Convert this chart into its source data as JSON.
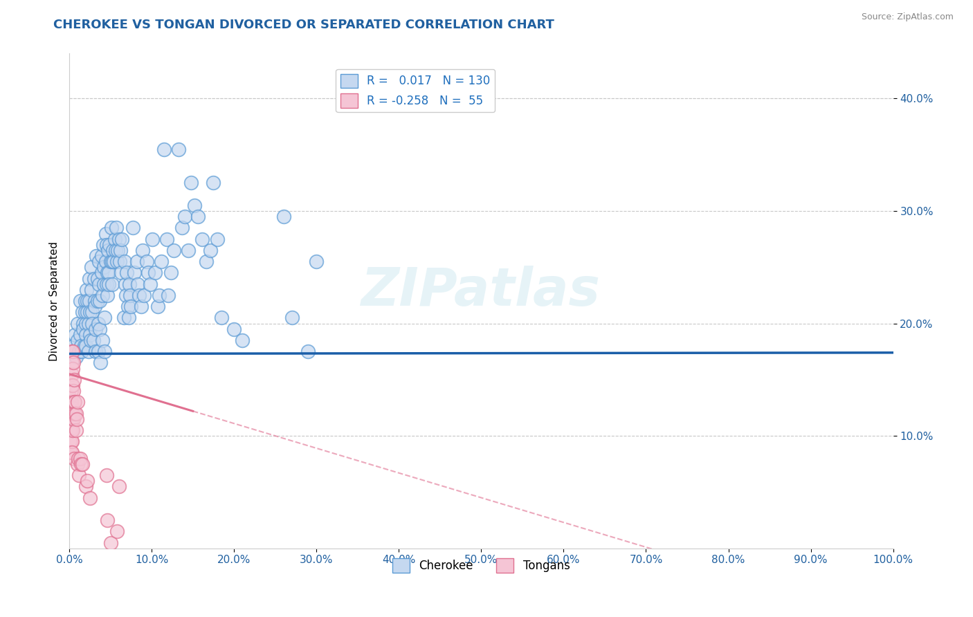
{
  "title": "CHEROKEE VS TONGAN DIVORCED OR SEPARATED CORRELATION CHART",
  "source_text": "Source: ZipAtlas.com",
  "ylabel": "Divorced or Separated",
  "xlabel": "",
  "xlim": [
    0.0,
    1.0
  ],
  "ylim": [
    0.0,
    0.44
  ],
  "xtick_labels": [
    "0.0%",
    "10.0%",
    "20.0%",
    "30.0%",
    "40.0%",
    "50.0%",
    "60.0%",
    "70.0%",
    "80.0%",
    "90.0%",
    "100.0%"
  ],
  "xtick_vals": [
    0.0,
    0.1,
    0.2,
    0.3,
    0.4,
    0.5,
    0.6,
    0.7,
    0.8,
    0.9,
    1.0
  ],
  "ytick_labels": [
    "10.0%",
    "20.0%",
    "30.0%",
    "40.0%"
  ],
  "ytick_vals": [
    0.1,
    0.2,
    0.3,
    0.4
  ],
  "grid_color": "#c8c8c8",
  "background_color": "#ffffff",
  "cherokee_color": "#c5d8f0",
  "cherokee_edge_color": "#5b9bd5",
  "tongan_color": "#f5c5d5",
  "tongan_edge_color": "#e07090",
  "cherokee_line_color": "#1a5ea8",
  "tongan_line_color": "#e07090",
  "cherokee_R": 0.017,
  "cherokee_N": 130,
  "tongan_R": -0.258,
  "tongan_N": 55,
  "watermark_text": "ZIPatlas",
  "legend_cherokee": "Cherokee",
  "legend_tongan": "Tongans",
  "title_color": "#2060a0",
  "cherokee_line_y_intercept": 0.173,
  "cherokee_line_slope": 0.001,
  "tongan_line_y_intercept": 0.155,
  "tongan_line_slope": -0.22,
  "cherokee_scatter": [
    [
      0.005,
      0.18
    ],
    [
      0.005,
      0.175
    ],
    [
      0.007,
      0.19
    ],
    [
      0.008,
      0.17
    ],
    [
      0.01,
      0.2
    ],
    [
      0.01,
      0.185
    ],
    [
      0.012,
      0.175
    ],
    [
      0.013,
      0.22
    ],
    [
      0.013,
      0.19
    ],
    [
      0.014,
      0.18
    ],
    [
      0.015,
      0.175
    ],
    [
      0.016,
      0.21
    ],
    [
      0.017,
      0.2
    ],
    [
      0.017,
      0.195
    ],
    [
      0.018,
      0.18
    ],
    [
      0.019,
      0.22
    ],
    [
      0.019,
      0.21
    ],
    [
      0.02,
      0.2
    ],
    [
      0.02,
      0.19
    ],
    [
      0.02,
      0.18
    ],
    [
      0.021,
      0.23
    ],
    [
      0.022,
      0.22
    ],
    [
      0.022,
      0.21
    ],
    [
      0.023,
      0.2
    ],
    [
      0.023,
      0.175
    ],
    [
      0.024,
      0.24
    ],
    [
      0.024,
      0.22
    ],
    [
      0.025,
      0.21
    ],
    [
      0.025,
      0.19
    ],
    [
      0.026,
      0.185
    ],
    [
      0.027,
      0.25
    ],
    [
      0.027,
      0.23
    ],
    [
      0.028,
      0.21
    ],
    [
      0.028,
      0.2
    ],
    [
      0.029,
      0.185
    ],
    [
      0.03,
      0.24
    ],
    [
      0.031,
      0.22
    ],
    [
      0.031,
      0.215
    ],
    [
      0.032,
      0.195
    ],
    [
      0.032,
      0.175
    ],
    [
      0.033,
      0.26
    ],
    [
      0.034,
      0.24
    ],
    [
      0.034,
      0.22
    ],
    [
      0.035,
      0.2
    ],
    [
      0.035,
      0.175
    ],
    [
      0.036,
      0.255
    ],
    [
      0.036,
      0.235
    ],
    [
      0.037,
      0.22
    ],
    [
      0.037,
      0.195
    ],
    [
      0.038,
      0.165
    ],
    [
      0.039,
      0.26
    ],
    [
      0.039,
      0.245
    ],
    [
      0.04,
      0.225
    ],
    [
      0.04,
      0.185
    ],
    [
      0.041,
      0.27
    ],
    [
      0.042,
      0.25
    ],
    [
      0.042,
      0.235
    ],
    [
      0.043,
      0.205
    ],
    [
      0.043,
      0.175
    ],
    [
      0.044,
      0.28
    ],
    [
      0.044,
      0.255
    ],
    [
      0.045,
      0.235
    ],
    [
      0.045,
      0.27
    ],
    [
      0.046,
      0.245
    ],
    [
      0.046,
      0.225
    ],
    [
      0.047,
      0.265
    ],
    [
      0.048,
      0.245
    ],
    [
      0.048,
      0.235
    ],
    [
      0.049,
      0.27
    ],
    [
      0.05,
      0.255
    ],
    [
      0.051,
      0.285
    ],
    [
      0.052,
      0.255
    ],
    [
      0.052,
      0.235
    ],
    [
      0.053,
      0.265
    ],
    [
      0.054,
      0.255
    ],
    [
      0.055,
      0.275
    ],
    [
      0.056,
      0.265
    ],
    [
      0.057,
      0.285
    ],
    [
      0.058,
      0.255
    ],
    [
      0.059,
      0.265
    ],
    [
      0.06,
      0.275
    ],
    [
      0.061,
      0.255
    ],
    [
      0.062,
      0.265
    ],
    [
      0.063,
      0.245
    ],
    [
      0.064,
      0.275
    ],
    [
      0.066,
      0.205
    ],
    [
      0.067,
      0.255
    ],
    [
      0.068,
      0.235
    ],
    [
      0.069,
      0.225
    ],
    [
      0.07,
      0.245
    ],
    [
      0.071,
      0.215
    ],
    [
      0.072,
      0.205
    ],
    [
      0.073,
      0.235
    ],
    [
      0.074,
      0.225
    ],
    [
      0.075,
      0.215
    ],
    [
      0.077,
      0.285
    ],
    [
      0.079,
      0.245
    ],
    [
      0.082,
      0.255
    ],
    [
      0.083,
      0.235
    ],
    [
      0.085,
      0.225
    ],
    [
      0.087,
      0.215
    ],
    [
      0.089,
      0.265
    ],
    [
      0.091,
      0.225
    ],
    [
      0.094,
      0.255
    ],
    [
      0.096,
      0.245
    ],
    [
      0.098,
      0.235
    ],
    [
      0.101,
      0.275
    ],
    [
      0.104,
      0.245
    ],
    [
      0.107,
      0.215
    ],
    [
      0.109,
      0.225
    ],
    [
      0.112,
      0.255
    ],
    [
      0.115,
      0.355
    ],
    [
      0.118,
      0.275
    ],
    [
      0.12,
      0.225
    ],
    [
      0.123,
      0.245
    ],
    [
      0.127,
      0.265
    ],
    [
      0.133,
      0.355
    ],
    [
      0.137,
      0.285
    ],
    [
      0.14,
      0.295
    ],
    [
      0.144,
      0.265
    ],
    [
      0.148,
      0.325
    ],
    [
      0.152,
      0.305
    ],
    [
      0.156,
      0.295
    ],
    [
      0.161,
      0.275
    ],
    [
      0.166,
      0.255
    ],
    [
      0.171,
      0.265
    ],
    [
      0.175,
      0.325
    ],
    [
      0.18,
      0.275
    ],
    [
      0.185,
      0.205
    ],
    [
      0.2,
      0.195
    ],
    [
      0.21,
      0.185
    ],
    [
      0.26,
      0.295
    ],
    [
      0.27,
      0.205
    ],
    [
      0.29,
      0.175
    ],
    [
      0.3,
      0.255
    ]
  ],
  "tongan_scatter": [
    [
      0.0,
      0.135
    ],
    [
      0.0,
      0.125
    ],
    [
      0.001,
      0.13
    ],
    [
      0.001,
      0.12
    ],
    [
      0.001,
      0.115
    ],
    [
      0.001,
      0.105
    ],
    [
      0.001,
      0.095
    ],
    [
      0.001,
      0.085
    ],
    [
      0.002,
      0.14
    ],
    [
      0.002,
      0.13
    ],
    [
      0.002,
      0.12
    ],
    [
      0.002,
      0.115
    ],
    [
      0.002,
      0.105
    ],
    [
      0.002,
      0.095
    ],
    [
      0.002,
      0.085
    ],
    [
      0.003,
      0.175
    ],
    [
      0.003,
      0.165
    ],
    [
      0.003,
      0.155
    ],
    [
      0.003,
      0.145
    ],
    [
      0.003,
      0.125
    ],
    [
      0.003,
      0.115
    ],
    [
      0.003,
      0.105
    ],
    [
      0.003,
      0.095
    ],
    [
      0.003,
      0.085
    ],
    [
      0.004,
      0.175
    ],
    [
      0.004,
      0.16
    ],
    [
      0.004,
      0.145
    ],
    [
      0.004,
      0.12
    ],
    [
      0.004,
      0.105
    ],
    [
      0.005,
      0.165
    ],
    [
      0.005,
      0.14
    ],
    [
      0.005,
      0.115
    ],
    [
      0.006,
      0.15
    ],
    [
      0.006,
      0.13
    ],
    [
      0.006,
      0.08
    ],
    [
      0.007,
      0.13
    ],
    [
      0.007,
      0.12
    ],
    [
      0.008,
      0.12
    ],
    [
      0.008,
      0.105
    ],
    [
      0.009,
      0.115
    ],
    [
      0.01,
      0.075
    ],
    [
      0.01,
      0.13
    ],
    [
      0.011,
      0.08
    ],
    [
      0.012,
      0.065
    ],
    [
      0.013,
      0.08
    ],
    [
      0.014,
      0.075
    ],
    [
      0.016,
      0.075
    ],
    [
      0.02,
      0.055
    ],
    [
      0.022,
      0.06
    ],
    [
      0.025,
      0.045
    ],
    [
      0.045,
      0.065
    ],
    [
      0.046,
      0.025
    ],
    [
      0.05,
      0.005
    ],
    [
      0.058,
      0.015
    ],
    [
      0.06,
      0.055
    ]
  ]
}
